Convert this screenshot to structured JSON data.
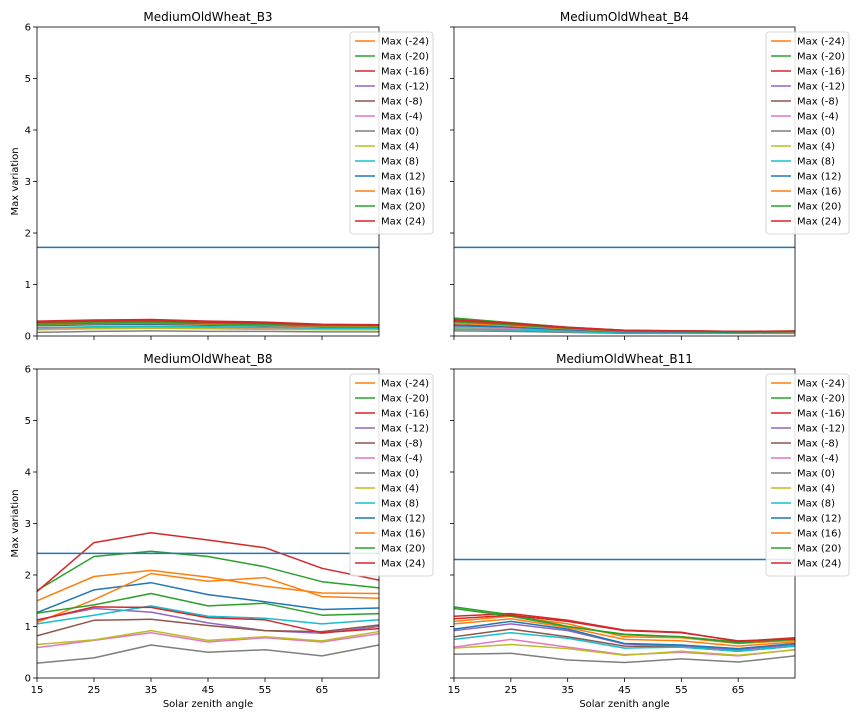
{
  "figure": {
    "xlabel": "Solar zenith angle",
    "ylabel": "Max variation"
  },
  "chart_data": [
    {
      "type": "line",
      "title": "MediumOldWheat_B3",
      "xlabel": "",
      "ylabel": "Max variation",
      "x": [
        15,
        25,
        35,
        45,
        55,
        65,
        75
      ],
      "xticks": [
        15,
        25,
        35,
        45,
        55,
        65
      ],
      "xlim": [
        15,
        75
      ],
      "ylim": [
        0,
        6
      ],
      "yticks": [
        0,
        1,
        2,
        3,
        4,
        5,
        6
      ],
      "legend": "top-right",
      "threshold": 1.72,
      "series": [
        {
          "name": "Max (-24)",
          "color": "#ff7f0e",
          "values": [
            0.24,
            0.26,
            0.27,
            0.24,
            0.22,
            0.19,
            0.18
          ]
        },
        {
          "name": "Max (-20)",
          "color": "#2ca02c",
          "values": [
            0.26,
            0.28,
            0.29,
            0.26,
            0.24,
            0.21,
            0.2
          ]
        },
        {
          "name": "Max (-16)",
          "color": "#d62728",
          "values": [
            0.29,
            0.31,
            0.32,
            0.29,
            0.27,
            0.23,
            0.22
          ]
        },
        {
          "name": "Max (-12)",
          "color": "#9467bd",
          "values": [
            0.22,
            0.24,
            0.25,
            0.23,
            0.21,
            0.19,
            0.18
          ]
        },
        {
          "name": "Max (-8)",
          "color": "#8c564b",
          "values": [
            0.2,
            0.22,
            0.23,
            0.21,
            0.2,
            0.18,
            0.17
          ]
        },
        {
          "name": "Max (-4)",
          "color": "#e377c2",
          "values": [
            0.14,
            0.16,
            0.17,
            0.16,
            0.15,
            0.14,
            0.14
          ]
        },
        {
          "name": "Max (0)",
          "color": "#7f7f7f",
          "values": [
            0.07,
            0.09,
            0.1,
            0.09,
            0.09,
            0.08,
            0.08
          ]
        },
        {
          "name": "Max (4)",
          "color": "#bcbd22",
          "values": [
            0.12,
            0.14,
            0.15,
            0.14,
            0.13,
            0.12,
            0.12
          ]
        },
        {
          "name": "Max (8)",
          "color": "#17becf",
          "values": [
            0.16,
            0.18,
            0.19,
            0.18,
            0.17,
            0.15,
            0.15
          ]
        },
        {
          "name": "Max (12)",
          "color": "#1f77b4",
          "values": [
            0.21,
            0.23,
            0.24,
            0.22,
            0.21,
            0.19,
            0.18
          ]
        },
        {
          "name": "Max (16)",
          "color": "#ff7f0e",
          "values": [
            0.22,
            0.24,
            0.25,
            0.23,
            0.21,
            0.19,
            0.19
          ]
        },
        {
          "name": "Max (20)",
          "color": "#2ca02c",
          "values": [
            0.23,
            0.25,
            0.26,
            0.24,
            0.22,
            0.2,
            0.2
          ]
        },
        {
          "name": "Max (24)",
          "color": "#d62728",
          "values": [
            0.27,
            0.29,
            0.3,
            0.27,
            0.25,
            0.22,
            0.21
          ]
        }
      ]
    },
    {
      "type": "line",
      "title": "MediumOldWheat_B4",
      "xlabel": "",
      "ylabel": "",
      "x": [
        15,
        25,
        35,
        45,
        55,
        65,
        75
      ],
      "xticks": [
        15,
        25,
        35,
        45,
        55,
        65
      ],
      "xlim": [
        15,
        75
      ],
      "ylim": [
        0,
        6
      ],
      "yticks": [
        0,
        1,
        2,
        3,
        4,
        5,
        6
      ],
      "legend": "top-right",
      "threshold": 1.72,
      "series": [
        {
          "name": "Max (-24)",
          "color": "#ff7f0e",
          "values": [
            0.3,
            0.24,
            0.16,
            0.1,
            0.1,
            0.08,
            0.09
          ]
        },
        {
          "name": "Max (-20)",
          "color": "#2ca02c",
          "values": [
            0.35,
            0.26,
            0.17,
            0.11,
            0.1,
            0.09,
            0.09
          ]
        },
        {
          "name": "Max (-16)",
          "color": "#d62728",
          "values": [
            0.32,
            0.25,
            0.17,
            0.11,
            0.1,
            0.09,
            0.1
          ]
        },
        {
          "name": "Max (-12)",
          "color": "#9467bd",
          "values": [
            0.26,
            0.21,
            0.14,
            0.09,
            0.09,
            0.08,
            0.08
          ]
        },
        {
          "name": "Max (-8)",
          "color": "#8c564b",
          "values": [
            0.22,
            0.18,
            0.12,
            0.08,
            0.08,
            0.07,
            0.08
          ]
        },
        {
          "name": "Max (-4)",
          "color": "#e377c2",
          "values": [
            0.17,
            0.14,
            0.1,
            0.07,
            0.07,
            0.06,
            0.07
          ]
        },
        {
          "name": "Max (0)",
          "color": "#7f7f7f",
          "values": [
            0.1,
            0.09,
            0.07,
            0.05,
            0.05,
            0.05,
            0.05
          ]
        },
        {
          "name": "Max (4)",
          "color": "#bcbd22",
          "values": [
            0.14,
            0.12,
            0.09,
            0.06,
            0.06,
            0.06,
            0.06
          ]
        },
        {
          "name": "Max (8)",
          "color": "#17becf",
          "values": [
            0.13,
            0.12,
            0.09,
            0.06,
            0.06,
            0.06,
            0.06
          ]
        },
        {
          "name": "Max (12)",
          "color": "#1f77b4",
          "values": [
            0.2,
            0.17,
            0.12,
            0.08,
            0.08,
            0.07,
            0.08
          ]
        },
        {
          "name": "Max (16)",
          "color": "#ff7f0e",
          "values": [
            0.25,
            0.2,
            0.14,
            0.09,
            0.09,
            0.08,
            0.08
          ]
        },
        {
          "name": "Max (20)",
          "color": "#2ca02c",
          "values": [
            0.28,
            0.22,
            0.15,
            0.1,
            0.09,
            0.08,
            0.09
          ]
        },
        {
          "name": "Max (24)",
          "color": "#d62728",
          "values": [
            0.3,
            0.24,
            0.16,
            0.1,
            0.1,
            0.09,
            0.09
          ]
        }
      ]
    },
    {
      "type": "line",
      "title": "MediumOldWheat_B8",
      "xlabel": "Solar zenith angle",
      "ylabel": "Max variation",
      "x": [
        15,
        25,
        35,
        45,
        55,
        65,
        75
      ],
      "xticks": [
        15,
        25,
        35,
        45,
        55,
        65
      ],
      "xlim": [
        15,
        75
      ],
      "ylim": [
        0,
        6
      ],
      "yticks": [
        0,
        1,
        2,
        3,
        4,
        5,
        6
      ],
      "legend": "top-right",
      "threshold": 2.42,
      "series": [
        {
          "name": "Max (-24)",
          "color": "#ff7f0e",
          "values": [
            1.5,
            1.97,
            2.09,
            1.96,
            1.78,
            1.65,
            1.64
          ]
        },
        {
          "name": "Max (-20)",
          "color": "#2ca02c",
          "values": [
            1.7,
            2.36,
            2.46,
            2.36,
            2.16,
            1.87,
            1.75
          ]
        },
        {
          "name": "Max (-16)",
          "color": "#d62728",
          "values": [
            1.68,
            2.63,
            2.82,
            2.68,
            2.53,
            2.13,
            1.9
          ]
        },
        {
          "name": "Max (-12)",
          "color": "#9467bd",
          "values": [
            1.13,
            1.35,
            1.28,
            1.07,
            0.92,
            0.87,
            1.0
          ]
        },
        {
          "name": "Max (-8)",
          "color": "#8c564b",
          "values": [
            0.82,
            1.12,
            1.14,
            1.02,
            0.92,
            0.9,
            1.03
          ]
        },
        {
          "name": "Max (-4)",
          "color": "#e377c2",
          "values": [
            0.59,
            0.73,
            0.88,
            0.7,
            0.78,
            0.7,
            0.86
          ]
        },
        {
          "name": "Max (0)",
          "color": "#7f7f7f",
          "values": [
            0.29,
            0.39,
            0.64,
            0.5,
            0.55,
            0.43,
            0.64
          ]
        },
        {
          "name": "Max (4)",
          "color": "#bcbd22",
          "values": [
            0.65,
            0.74,
            0.92,
            0.73,
            0.8,
            0.72,
            0.9
          ]
        },
        {
          "name": "Max (8)",
          "color": "#17becf",
          "values": [
            1.05,
            1.22,
            1.4,
            1.2,
            1.16,
            1.05,
            1.13
          ]
        },
        {
          "name": "Max (12)",
          "color": "#1f77b4",
          "values": [
            1.27,
            1.71,
            1.85,
            1.62,
            1.48,
            1.33,
            1.36
          ]
        },
        {
          "name": "Max (16)",
          "color": "#ff7f0e",
          "values": [
            1.08,
            1.52,
            2.03,
            1.88,
            1.95,
            1.58,
            1.55
          ]
        },
        {
          "name": "Max (20)",
          "color": "#2ca02c",
          "values": [
            1.26,
            1.42,
            1.64,
            1.4,
            1.45,
            1.22,
            1.25
          ]
        },
        {
          "name": "Max (24)",
          "color": "#d62728",
          "values": [
            1.12,
            1.38,
            1.37,
            1.17,
            1.13,
            0.88,
            0.96
          ]
        }
      ]
    },
    {
      "type": "line",
      "title": "MediumOldWheat_B11",
      "xlabel": "Solar zenith angle",
      "ylabel": "",
      "x": [
        15,
        25,
        35,
        45,
        55,
        65,
        75
      ],
      "xticks": [
        15,
        25,
        35,
        45,
        55,
        65
      ],
      "xlim": [
        15,
        75
      ],
      "ylim": [
        0,
        6
      ],
      "yticks": [
        0,
        1,
        2,
        3,
        4,
        5,
        6
      ],
      "legend": "top-right",
      "threshold": 2.3,
      "series": [
        {
          "name": "Max (-24)",
          "color": "#ff7f0e",
          "values": [
            1.1,
            1.2,
            1.05,
            0.8,
            0.78,
            0.67,
            0.73
          ]
        },
        {
          "name": "Max (-20)",
          "color": "#2ca02c",
          "values": [
            1.38,
            1.23,
            1.0,
            0.84,
            0.8,
            0.7,
            0.77
          ]
        },
        {
          "name": "Max (-16)",
          "color": "#d62728",
          "values": [
            1.2,
            1.25,
            1.12,
            0.93,
            0.89,
            0.71,
            0.78
          ]
        },
        {
          "name": "Max (-12)",
          "color": "#9467bd",
          "values": [
            0.92,
            1.05,
            0.92,
            0.66,
            0.62,
            0.55,
            0.65
          ]
        },
        {
          "name": "Max (-8)",
          "color": "#8c564b",
          "values": [
            0.8,
            0.95,
            0.8,
            0.62,
            0.6,
            0.52,
            0.62
          ]
        },
        {
          "name": "Max (-4)",
          "color": "#e377c2",
          "values": [
            0.6,
            0.75,
            0.6,
            0.45,
            0.5,
            0.43,
            0.55
          ]
        },
        {
          "name": "Max (0)",
          "color": "#7f7f7f",
          "values": [
            0.46,
            0.48,
            0.35,
            0.3,
            0.37,
            0.31,
            0.43
          ]
        },
        {
          "name": "Max (4)",
          "color": "#bcbd22",
          "values": [
            0.58,
            0.65,
            0.57,
            0.44,
            0.52,
            0.44,
            0.55
          ]
        },
        {
          "name": "Max (8)",
          "color": "#17becf",
          "values": [
            0.75,
            0.88,
            0.77,
            0.58,
            0.6,
            0.52,
            0.62
          ]
        },
        {
          "name": "Max (12)",
          "color": "#1f77b4",
          "values": [
            0.95,
            1.1,
            0.95,
            0.67,
            0.64,
            0.57,
            0.67
          ]
        },
        {
          "name": "Max (16)",
          "color": "#ff7f0e",
          "values": [
            1.05,
            1.15,
            0.98,
            0.75,
            0.72,
            0.62,
            0.7
          ]
        },
        {
          "name": "Max (20)",
          "color": "#2ca02c",
          "values": [
            1.35,
            1.2,
            1.0,
            0.85,
            0.8,
            0.68,
            0.75
          ]
        },
        {
          "name": "Max (24)",
          "color": "#d62728",
          "values": [
            1.15,
            1.22,
            1.1,
            0.92,
            0.88,
            0.72,
            0.76
          ]
        }
      ]
    }
  ]
}
